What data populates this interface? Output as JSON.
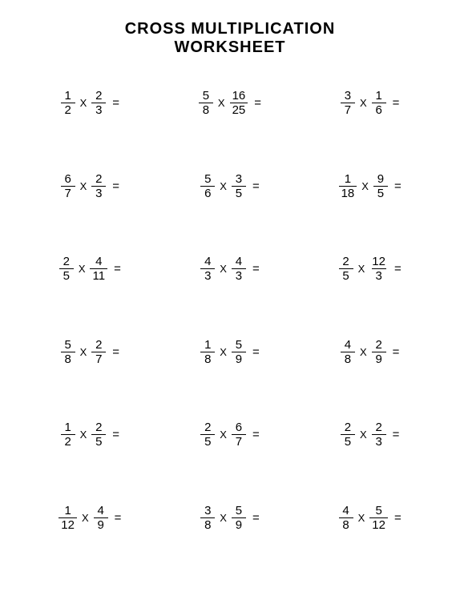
{
  "title": {
    "line1": "CROSS MULTIPLICATION",
    "line2": "WORKSHEET",
    "fontsize": 20,
    "color": "#000000"
  },
  "styles": {
    "background_color": "#ffffff",
    "text_color": "#000000",
    "fraction_bar_color": "#000000",
    "problem_fontsize": 15
  },
  "operator": "X",
  "equals": "=",
  "problems": [
    [
      {
        "a_num": "1",
        "a_den": "2",
        "b_num": "2",
        "b_den": "3"
      },
      {
        "a_num": "5",
        "a_den": "8",
        "b_num": "16",
        "b_den": "25"
      },
      {
        "a_num": "3",
        "a_den": "7",
        "b_num": "1",
        "b_den": "6"
      }
    ],
    [
      {
        "a_num": "6",
        "a_den": "7",
        "b_num": "2",
        "b_den": "3"
      },
      {
        "a_num": "5",
        "a_den": "6",
        "b_num": "3",
        "b_den": "5"
      },
      {
        "a_num": "1",
        "a_den": "18",
        "b_num": "9",
        "b_den": "5"
      }
    ],
    [
      {
        "a_num": "2",
        "a_den": "5",
        "b_num": "4",
        "b_den": "11"
      },
      {
        "a_num": "4",
        "a_den": "3",
        "b_num": "4",
        "b_den": "3"
      },
      {
        "a_num": "2",
        "a_den": "5",
        "b_num": "12",
        "b_den": "3"
      }
    ],
    [
      {
        "a_num": "5",
        "a_den": "8",
        "b_num": "2",
        "b_den": "7"
      },
      {
        "a_num": "1",
        "a_den": "8",
        "b_num": "5",
        "b_den": "9"
      },
      {
        "a_num": "4",
        "a_den": "8",
        "b_num": "2",
        "b_den": "9"
      }
    ],
    [
      {
        "a_num": "1",
        "a_den": "2",
        "b_num": "2",
        "b_den": "5"
      },
      {
        "a_num": "2",
        "a_den": "5",
        "b_num": "6",
        "b_den": "7"
      },
      {
        "a_num": "2",
        "a_den": "5",
        "b_num": "2",
        "b_den": "3"
      }
    ],
    [
      {
        "a_num": "1",
        "a_den": "12",
        "b_num": "4",
        "b_den": "9"
      },
      {
        "a_num": "3",
        "a_den": "8",
        "b_num": "5",
        "b_den": "9"
      },
      {
        "a_num": "4",
        "a_den": "8",
        "b_num": "5",
        "b_den": "12"
      }
    ]
  ]
}
